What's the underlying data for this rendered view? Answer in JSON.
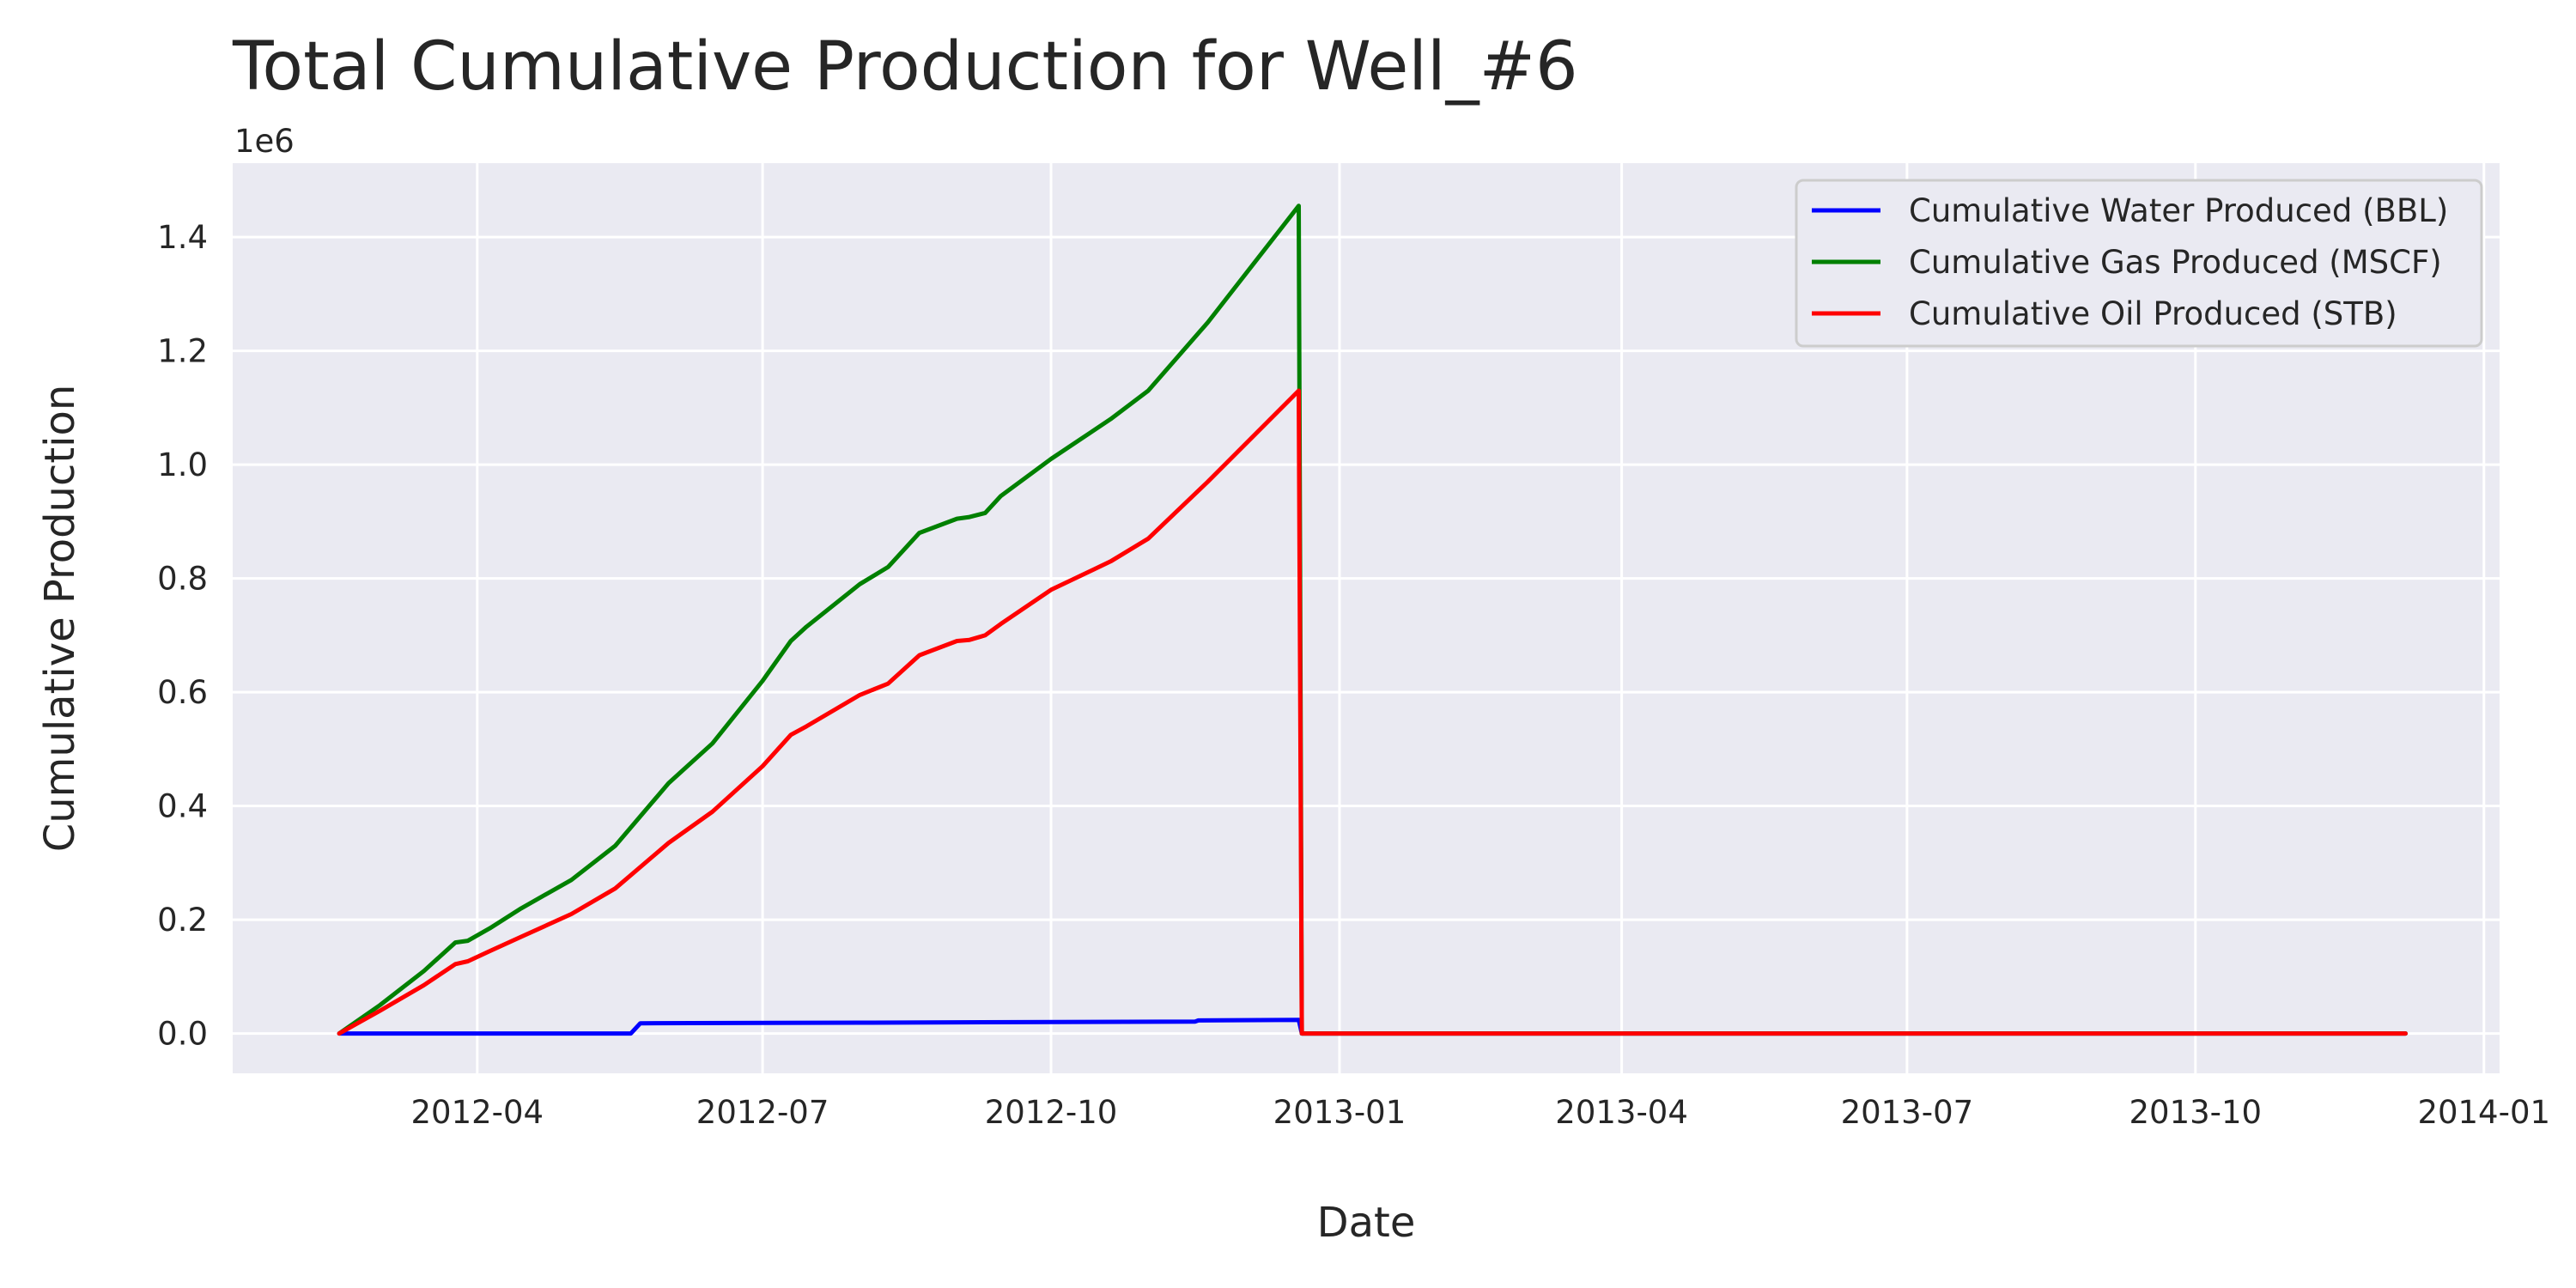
{
  "chart_data": {
    "type": "line",
    "title": "Total Cumulative Production for Well_#6",
    "xlabel": "Date",
    "ylabel": "Cumulative Production",
    "y_offset_label": "1e6",
    "xlim": [
      "2012-01-14",
      "2014-01-06"
    ],
    "ylim": [
      -70000,
      1530000
    ],
    "x_ticks": [
      "2012-04",
      "2012-07",
      "2012-10",
      "2013-01",
      "2013-04",
      "2013-07",
      "2013-10",
      "2014-01"
    ],
    "y_ticks": [
      "0.0",
      "0.2",
      "0.4",
      "0.6",
      "0.8",
      "1.0",
      "1.2",
      "1.4"
    ],
    "y_tick_values": [
      0,
      200000,
      400000,
      600000,
      800000,
      1000000,
      1200000,
      1400000
    ],
    "grid": true,
    "legend_position": "top-right",
    "series": [
      {
        "name": "Cumulative Water Produced (BBL)",
        "color": "#0000ff",
        "points": [
          [
            "2012-02-17",
            0
          ],
          [
            "2012-05-20",
            0
          ],
          [
            "2012-05-23",
            18000
          ],
          [
            "2012-08-01",
            19000
          ],
          [
            "2012-11-16",
            21000
          ],
          [
            "2012-11-17",
            23000
          ],
          [
            "2012-12-19",
            24000
          ],
          [
            "2012-12-20",
            0
          ],
          [
            "2013-12-07",
            0
          ]
        ]
      },
      {
        "name": "Cumulative Gas Produced (MSCF)",
        "color": "#008000",
        "points": [
          [
            "2012-02-17",
            0
          ],
          [
            "2012-03-01",
            50000
          ],
          [
            "2012-03-15",
            110000
          ],
          [
            "2012-03-25",
            160000
          ],
          [
            "2012-03-29",
            163000
          ],
          [
            "2012-04-05",
            185000
          ],
          [
            "2012-04-15",
            220000
          ],
          [
            "2012-05-01",
            270000
          ],
          [
            "2012-05-15",
            330000
          ],
          [
            "2012-06-01",
            440000
          ],
          [
            "2012-06-15",
            510000
          ],
          [
            "2012-07-01",
            620000
          ],
          [
            "2012-07-10",
            690000
          ],
          [
            "2012-07-15",
            715000
          ],
          [
            "2012-08-01",
            790000
          ],
          [
            "2012-08-10",
            820000
          ],
          [
            "2012-08-20",
            880000
          ],
          [
            "2012-09-01",
            905000
          ],
          [
            "2012-09-05",
            908000
          ],
          [
            "2012-09-10",
            915000
          ],
          [
            "2012-09-15",
            945000
          ],
          [
            "2012-10-01",
            1010000
          ],
          [
            "2012-10-20",
            1080000
          ],
          [
            "2012-11-01",
            1130000
          ],
          [
            "2012-11-20",
            1250000
          ],
          [
            "2012-12-19",
            1455000
          ],
          [
            "2012-12-20",
            0
          ],
          [
            "2013-12-07",
            0
          ]
        ]
      },
      {
        "name": "Cumulative Oil Produced (STB)",
        "color": "#ff0000",
        "points": [
          [
            "2012-02-17",
            0
          ],
          [
            "2012-03-01",
            40000
          ],
          [
            "2012-03-15",
            85000
          ],
          [
            "2012-03-25",
            122000
          ],
          [
            "2012-03-29",
            127000
          ],
          [
            "2012-04-05",
            145000
          ],
          [
            "2012-04-15",
            170000
          ],
          [
            "2012-05-01",
            210000
          ],
          [
            "2012-05-15",
            255000
          ],
          [
            "2012-06-01",
            335000
          ],
          [
            "2012-06-15",
            390000
          ],
          [
            "2012-07-01",
            470000
          ],
          [
            "2012-07-10",
            525000
          ],
          [
            "2012-07-15",
            540000
          ],
          [
            "2012-08-01",
            595000
          ],
          [
            "2012-08-10",
            615000
          ],
          [
            "2012-08-20",
            665000
          ],
          [
            "2012-09-01",
            690000
          ],
          [
            "2012-09-05",
            692000
          ],
          [
            "2012-09-10",
            700000
          ],
          [
            "2012-09-15",
            720000
          ],
          [
            "2012-10-01",
            780000
          ],
          [
            "2012-10-20",
            830000
          ],
          [
            "2012-11-01",
            870000
          ],
          [
            "2012-11-20",
            970000
          ],
          [
            "2012-12-19",
            1130000
          ],
          [
            "2012-12-20",
            0
          ],
          [
            "2013-12-07",
            0
          ]
        ]
      }
    ]
  }
}
